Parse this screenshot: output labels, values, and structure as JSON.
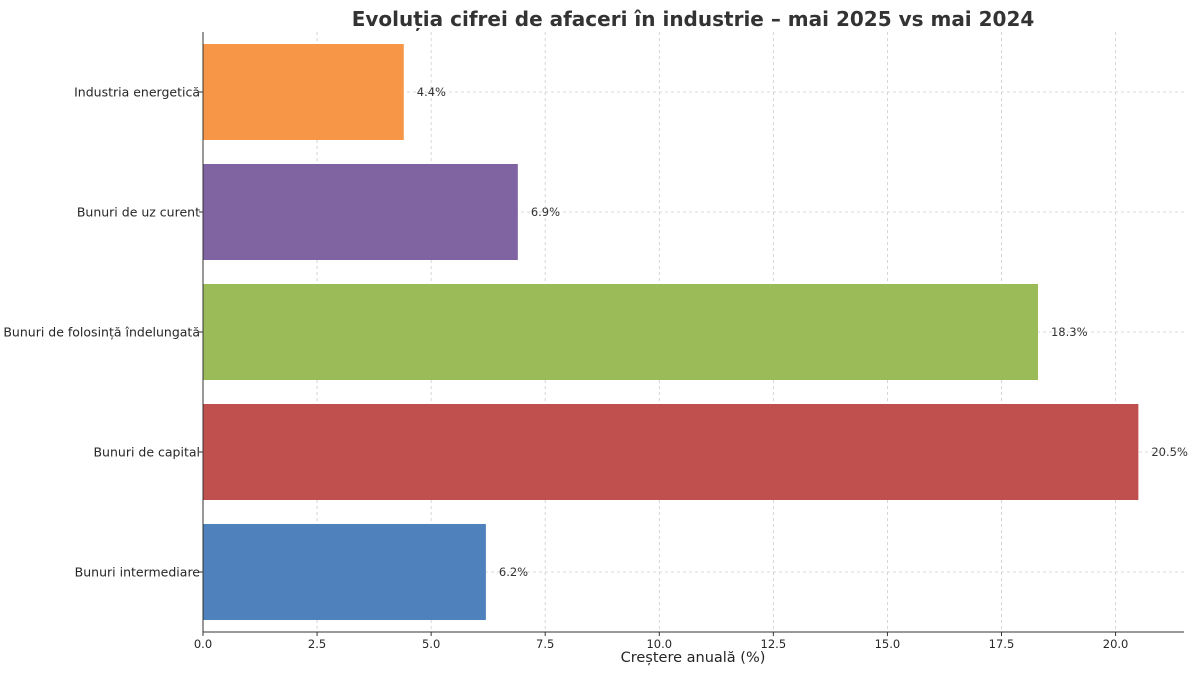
{
  "chart_data": {
    "type": "bar",
    "orientation": "horizontal",
    "title": "Evoluția cifrei de afaceri în industrie – mai 2025 vs mai 2024",
    "xlabel": "Creștere anuală (%)",
    "ylabel": "",
    "categories": [
      "Industria energetică",
      "Bunuri de uz curent",
      "Bunuri de folosință îndelungată",
      "Bunuri de capital",
      "Bunuri intermediare"
    ],
    "values": [
      4.4,
      6.9,
      18.3,
      20.5,
      6.2
    ],
    "value_labels": [
      "4.4%",
      "6.9%",
      "18.3%",
      "20.5%",
      "6.2%"
    ],
    "colors": [
      "#f79646",
      "#8064a2",
      "#9bbb59",
      "#c0504d",
      "#4f81bd"
    ],
    "xlim": [
      0,
      21.5
    ],
    "xticks": [
      0,
      2.5,
      5,
      7.5,
      10,
      12.5,
      15,
      17.5,
      20
    ],
    "xtick_labels": [
      "0.0",
      "2.5",
      "5.0",
      "7.5",
      "10.0",
      "12.5",
      "15.0",
      "17.5",
      "20.0"
    ],
    "grid": true,
    "legend": false
  }
}
